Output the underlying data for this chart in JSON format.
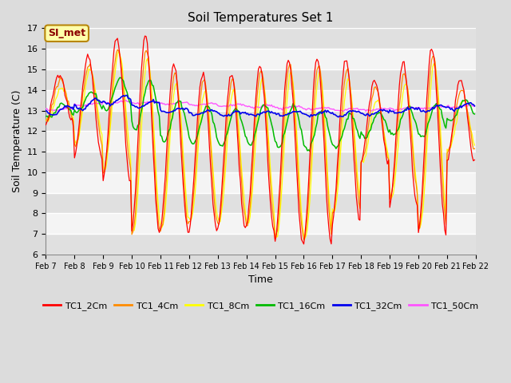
{
  "title": "Soil Temperatures Set 1",
  "xlabel": "Time",
  "ylabel": "Soil Temperature (C)",
  "ylim": [
    6.0,
    17.0
  ],
  "yticks": [
    6.0,
    7.0,
    8.0,
    9.0,
    10.0,
    11.0,
    12.0,
    13.0,
    14.0,
    15.0,
    16.0,
    17.0
  ],
  "colors": {
    "TC1_2Cm": "#FF0000",
    "TC1_4Cm": "#FF8C00",
    "TC1_8Cm": "#FFFF00",
    "TC1_16Cm": "#00BB00",
    "TC1_32Cm": "#0000EE",
    "TC1_50Cm": "#FF55FF"
  },
  "fig_facecolor": "#DCDCDC",
  "axes_facecolor": "#E8E8E8",
  "stripe_light": "#F4F4F4",
  "stripe_dark": "#E0E0E0",
  "grid_color": "#CCCCCC",
  "annotation_text": "SI_met",
  "annotation_fg": "#8B0000",
  "annotation_bg": "#FFFFAA",
  "annotation_edge": "#B8860B",
  "legend_labels": [
    "TC1_2Cm",
    "TC1_4Cm",
    "TC1_8Cm",
    "TC1_16Cm",
    "TC1_32Cm",
    "TC1_50Cm"
  ],
  "n_days": 15,
  "n_per_day": 24,
  "start_day": 7,
  "start_month": "Feb"
}
